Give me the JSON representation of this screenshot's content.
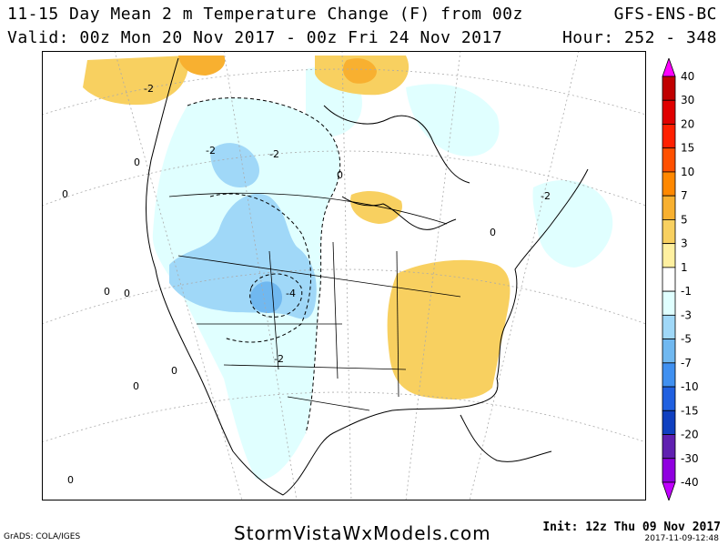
{
  "header": {
    "title": "11-15 Day Mean 2 m Temperature Change (F) from 00z",
    "valid": "Valid: 00z Mon 20 Nov 2017 - 00z Fri 24 Nov 2017",
    "model": "GFS-ENS-BC",
    "hour": "Hour: 252 - 348"
  },
  "footer": {
    "credit": "GrADS: COLA/IGES",
    "site": "StormVistaWxModels.com",
    "init": "Init: 12z Thu 09 Nov 2017",
    "timestamp": "2017-11-09-12:48"
  },
  "legend": {
    "ticks": [
      "40",
      "30",
      "20",
      "15",
      "10",
      "7",
      "5",
      "3",
      "1",
      "-1",
      "-3",
      "-5",
      "-7",
      "-10",
      "-15",
      "-20",
      "-30",
      "-40"
    ],
    "colors": [
      "#ff00ff",
      "#c00000",
      "#e00000",
      "#ff2000",
      "#ff5000",
      "#ff8800",
      "#f8b030",
      "#f8d060",
      "#fff0a0",
      "#ffffff",
      "#e0ffff",
      "#a0d8f8",
      "#70b8f0",
      "#4090f0",
      "#2060e0",
      "#1040c0",
      "#6020b0",
      "#9000e0",
      "#c000ff"
    ]
  },
  "contour_labels": [
    "-2",
    "-2",
    "-2",
    "-2",
    "-4",
    "-2",
    "0",
    "0",
    "0",
    "0",
    "0",
    "0",
    "0",
    "0",
    "0"
  ]
}
